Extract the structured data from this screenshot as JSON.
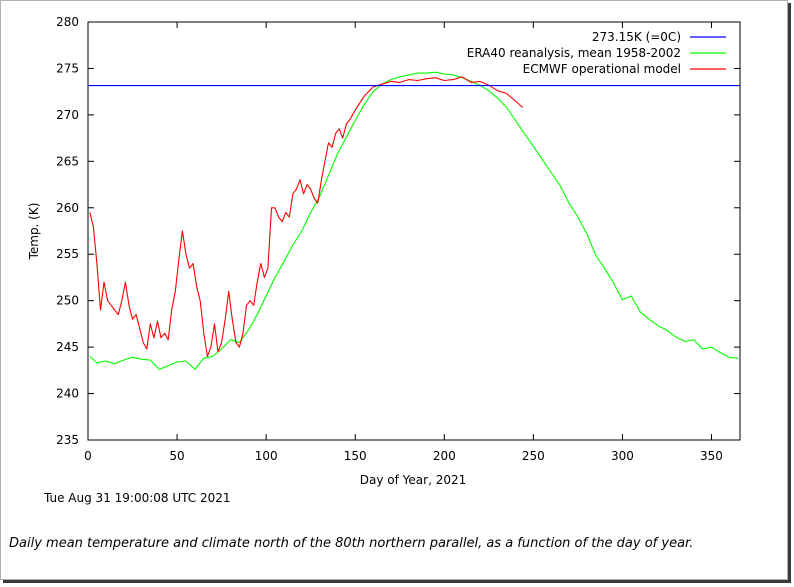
{
  "chart_data": {
    "type": "line",
    "xlabel": "Day of Year, 2021",
    "ylabel": "Temp. (K)",
    "xlim": [
      0,
      366
    ],
    "ylim": [
      235,
      280
    ],
    "xticks": [
      0,
      50,
      100,
      150,
      200,
      250,
      300,
      350
    ],
    "yticks": [
      235,
      240,
      245,
      250,
      255,
      260,
      265,
      270,
      275,
      280
    ],
    "grid": false,
    "legend_position": "top-right",
    "series": [
      {
        "name": "273.15K (=0C)",
        "color": "#0000ff",
        "x": [
          0,
          366
        ],
        "y": [
          273.15,
          273.15
        ]
      },
      {
        "name": "ERA40 reanalysis, mean 1958-2002",
        "color": "#00ff00",
        "x": [
          1,
          5,
          10,
          15,
          20,
          25,
          30,
          35,
          40,
          45,
          50,
          55,
          60,
          65,
          70,
          75,
          80,
          85,
          90,
          95,
          100,
          105,
          110,
          115,
          120,
          125,
          130,
          135,
          140,
          145,
          150,
          155,
          160,
          165,
          170,
          175,
          180,
          185,
          190,
          195,
          200,
          205,
          210,
          215,
          220,
          225,
          230,
          235,
          240,
          245,
          250,
          255,
          260,
          265,
          270,
          275,
          280,
          285,
          290,
          295,
          300,
          305,
          310,
          315,
          320,
          325,
          330,
          335,
          340,
          345,
          350,
          355,
          360,
          365
        ],
        "y": [
          244.0,
          243.3,
          243.5,
          243.2,
          243.6,
          243.9,
          243.7,
          243.6,
          242.6,
          243.0,
          243.4,
          243.5,
          242.6,
          243.8,
          244.0,
          244.8,
          245.8,
          245.5,
          246.8,
          248.5,
          250.5,
          252.5,
          254.2,
          256.0,
          257.5,
          259.5,
          261.2,
          263.5,
          265.8,
          267.6,
          269.4,
          271.1,
          272.5,
          273.3,
          273.8,
          274.1,
          274.3,
          274.5,
          274.5,
          274.6,
          274.4,
          274.3,
          274.0,
          273.6,
          273.2,
          272.6,
          271.8,
          270.8,
          269.4,
          268.0,
          266.6,
          265.2,
          263.8,
          262.4,
          260.5,
          259.0,
          257.2,
          254.9,
          253.5,
          251.9,
          250.1,
          250.5,
          248.8,
          248.0,
          247.3,
          246.8,
          246.1,
          245.6,
          245.8,
          244.8,
          245.0,
          244.4,
          243.9,
          243.8
        ]
      },
      {
        "name": "ECMWF operational model",
        "color": "#ff0000",
        "x": [
          1,
          3,
          5,
          7,
          9,
          11,
          13,
          15,
          17,
          19,
          21,
          23,
          25,
          27,
          29,
          31,
          33,
          35,
          37,
          39,
          41,
          43,
          45,
          47,
          49,
          51,
          53,
          55,
          57,
          59,
          61,
          63,
          65,
          67,
          69,
          71,
          73,
          75,
          77,
          79,
          81,
          83,
          85,
          87,
          89,
          91,
          93,
          95,
          97,
          99,
          101,
          103,
          105,
          107,
          109,
          111,
          113,
          115,
          117,
          119,
          121,
          123,
          125,
          127,
          129,
          131,
          133,
          135,
          137,
          139,
          141,
          143,
          145,
          147,
          150,
          155,
          160,
          165,
          170,
          175,
          180,
          185,
          190,
          195,
          200,
          205,
          210,
          215,
          220,
          225,
          230,
          235,
          240,
          244
        ],
        "y": [
          259.5,
          258.0,
          254.0,
          249.0,
          252.0,
          250.0,
          249.5,
          249.0,
          248.5,
          250.0,
          252.0,
          249.5,
          248.0,
          248.5,
          247.0,
          245.5,
          244.8,
          247.5,
          246.0,
          247.8,
          246.0,
          246.5,
          245.8,
          249.0,
          251.0,
          254.5,
          257.5,
          255.0,
          253.5,
          254.0,
          251.5,
          250.0,
          246.5,
          244.0,
          245.0,
          247.5,
          244.5,
          245.5,
          248.0,
          251.0,
          248.0,
          245.5,
          245.0,
          246.5,
          249.5,
          250.0,
          249.5,
          252.0,
          254.0,
          252.5,
          253.5,
          260.0,
          260.0,
          259.0,
          258.5,
          259.5,
          259.0,
          261.5,
          262.0,
          263.0,
          261.5,
          262.5,
          262.0,
          261.0,
          260.5,
          263.0,
          265.0,
          267.0,
          266.5,
          268.0,
          268.5,
          267.5,
          269.0,
          269.5,
          270.5,
          272.0,
          273.0,
          273.3,
          273.6,
          273.5,
          273.8,
          273.7,
          273.9,
          274.0,
          273.7,
          273.8,
          274.1,
          273.5,
          273.6,
          273.2,
          272.6,
          272.3,
          271.5,
          270.8
        ]
      }
    ]
  },
  "timestamp": "Tue Aug 31 19:00:08 UTC 2021",
  "caption": "Daily mean temperature and climate north of the 80th northern parallel, as a function of the day of year."
}
